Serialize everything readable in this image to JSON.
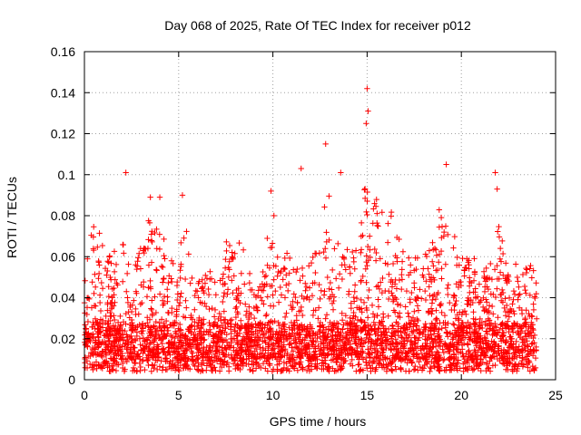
{
  "chart_data": {
    "type": "scatter",
    "title": "Day 068 of 2025, Rate Of TEC Index for receiver p012",
    "xlabel": "GPS time / hours",
    "ylabel": "ROTI / TECUs",
    "xlim": [
      0,
      25
    ],
    "ylim": [
      0,
      0.16
    ],
    "xticks": [
      0,
      5,
      10,
      15,
      20,
      25
    ],
    "xtick_labels": [
      "0",
      "5",
      "10",
      "15",
      "20",
      "25"
    ],
    "yticks": [
      0,
      0.02,
      0.04,
      0.06,
      0.08,
      0.1,
      0.12,
      0.14,
      0.16
    ],
    "ytick_labels": [
      "0",
      "0.02",
      "0.04",
      "0.06",
      "0.08",
      "0.1",
      "0.12",
      "0.14",
      "0.16"
    ],
    "grid": true,
    "marker": "+",
    "color": "#ff0000",
    "x_data_range": [
      0,
      24
    ],
    "notable_points": [
      {
        "x": 2.2,
        "y": 0.101
      },
      {
        "x": 11.5,
        "y": 0.103
      },
      {
        "x": 12.8,
        "y": 0.115
      },
      {
        "x": 13.6,
        "y": 0.101
      },
      {
        "x": 15.0,
        "y": 0.142
      },
      {
        "x": 15.05,
        "y": 0.131
      },
      {
        "x": 14.95,
        "y": 0.125
      },
      {
        "x": 19.2,
        "y": 0.105
      },
      {
        "x": 21.8,
        "y": 0.101
      },
      {
        "x": 21.9,
        "y": 0.093
      },
      {
        "x": 5.2,
        "y": 0.09
      },
      {
        "x": 9.9,
        "y": 0.092
      },
      {
        "x": 3.5,
        "y": 0.089
      },
      {
        "x": 4.0,
        "y": 0.089
      }
    ],
    "envelope": [
      {
        "x": 0,
        "y": 0.055
      },
      {
        "x": 0.5,
        "y": 0.077
      },
      {
        "x": 1,
        "y": 0.068
      },
      {
        "x": 1.5,
        "y": 0.065
      },
      {
        "x": 2,
        "y": 0.075
      },
      {
        "x": 2.5,
        "y": 0.058
      },
      {
        "x": 3,
        "y": 0.07
      },
      {
        "x": 3.5,
        "y": 0.085
      },
      {
        "x": 4,
        "y": 0.085
      },
      {
        "x": 4.5,
        "y": 0.06
      },
      {
        "x": 5,
        "y": 0.055
      },
      {
        "x": 5.3,
        "y": 0.088
      },
      {
        "x": 5.8,
        "y": 0.045
      },
      {
        "x": 6.5,
        "y": 0.055
      },
      {
        "x": 7,
        "y": 0.06
      },
      {
        "x": 7.5,
        "y": 0.068
      },
      {
        "x": 8,
        "y": 0.075
      },
      {
        "x": 8.5,
        "y": 0.062
      },
      {
        "x": 9,
        "y": 0.05
      },
      {
        "x": 9.5,
        "y": 0.06
      },
      {
        "x": 10,
        "y": 0.088
      },
      {
        "x": 10.5,
        "y": 0.062
      },
      {
        "x": 11,
        "y": 0.07
      },
      {
        "x": 11.5,
        "y": 0.06
      },
      {
        "x": 12,
        "y": 0.055
      },
      {
        "x": 12.5,
        "y": 0.08
      },
      {
        "x": 13,
        "y": 0.095
      },
      {
        "x": 13.5,
        "y": 0.075
      },
      {
        "x": 14,
        "y": 0.065
      },
      {
        "x": 14.5,
        "y": 0.08
      },
      {
        "x": 15,
        "y": 0.098
      },
      {
        "x": 15.5,
        "y": 0.09
      },
      {
        "x": 16,
        "y": 0.085
      },
      {
        "x": 16.5,
        "y": 0.08
      },
      {
        "x": 17,
        "y": 0.06
      },
      {
        "x": 17.5,
        "y": 0.062
      },
      {
        "x": 18,
        "y": 0.065
      },
      {
        "x": 18.5,
        "y": 0.07
      },
      {
        "x": 19,
        "y": 0.09
      },
      {
        "x": 19.5,
        "y": 0.075
      },
      {
        "x": 20,
        "y": 0.06
      },
      {
        "x": 20.5,
        "y": 0.065
      },
      {
        "x": 21,
        "y": 0.055
      },
      {
        "x": 21.5,
        "y": 0.06
      },
      {
        "x": 22,
        "y": 0.075
      },
      {
        "x": 22.5,
        "y": 0.058
      },
      {
        "x": 23,
        "y": 0.065
      },
      {
        "x": 23.5,
        "y": 0.06
      },
      {
        "x": 24,
        "y": 0.05
      }
    ],
    "point_count": 3600
  }
}
